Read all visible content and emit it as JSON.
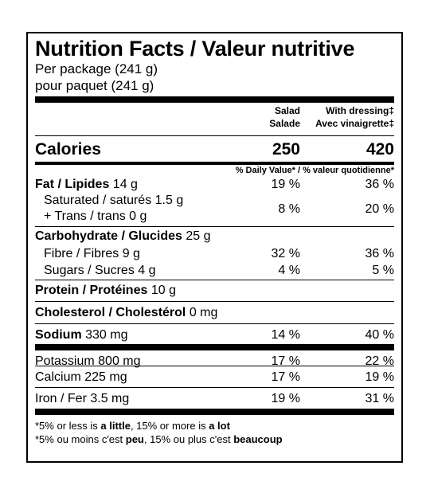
{
  "title": "Nutrition Facts / Valeur nutritive",
  "serving_en": "Per package (241 g)",
  "serving_fr": "pour paquet (241 g)",
  "col1": {
    "line1": "Salad",
    "line2": "Salade"
  },
  "col2": {
    "line1": "With dressing‡",
    "line2": "Avec vinaigrette‡"
  },
  "calories": {
    "label": "Calories",
    "v1": "250",
    "v2": "420"
  },
  "dv_header": "% Daily Value* / % valeur quotidienne*",
  "fat": {
    "label": "Fat / Lipides",
    "amount": "14 g",
    "v1": "19 %",
    "v2": "36 %"
  },
  "sat": {
    "label1": "Saturated / saturés 1.5 g",
    "label2": "+ Trans / trans 0 g",
    "v1": "8 %",
    "v2": "20 %"
  },
  "carb": {
    "label": "Carbohydrate / Glucides",
    "amount": "25 g"
  },
  "fibre": {
    "label": "Fibre / Fibres 9 g",
    "v1": "32 %",
    "v2": "36 %"
  },
  "sugars": {
    "label": "Sugars / Sucres 4 g",
    "v1": "4 %",
    "v2": "5 %"
  },
  "protein": {
    "label": "Protein / Protéines",
    "amount": "10 g"
  },
  "cholesterol": {
    "label": "Cholesterol / Cholestérol",
    "amount": "0 mg"
  },
  "sodium": {
    "label": "Sodium",
    "amount": "330 mg",
    "v1": "14 %",
    "v2": "40 %"
  },
  "potassium": {
    "label": "Potassium 800 mg",
    "v1": "17 %",
    "v2": "22 %"
  },
  "calcium": {
    "label": "Calcium 225 mg",
    "v1": "17 %",
    "v2": "19 %"
  },
  "iron": {
    "label": "Iron / Fer 3.5 mg",
    "v1": "19 %",
    "v2": "31 %"
  },
  "footnote_en": {
    "a": "*5% or less is ",
    "b": "a little",
    "c": ", 15% or more is ",
    "d": "a lot"
  },
  "footnote_fr": {
    "a": "*5% ou moins c'est ",
    "b": "peu",
    "c": ", 15% ou plus c'est ",
    "d": "beaucoup"
  }
}
